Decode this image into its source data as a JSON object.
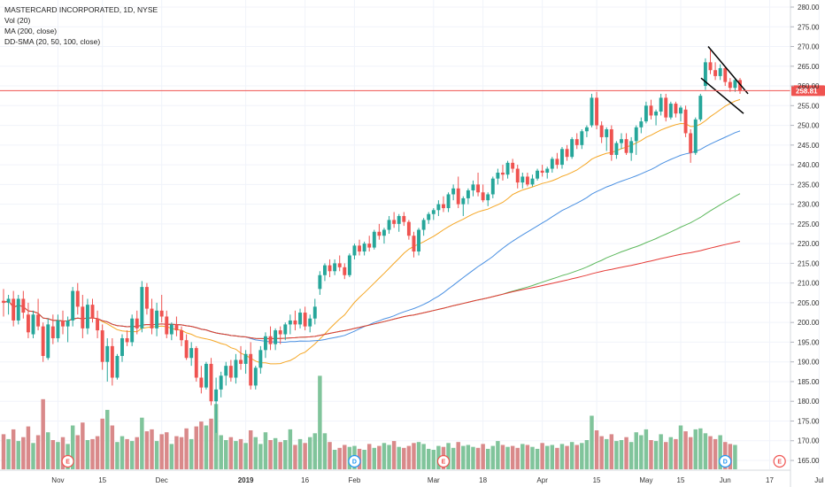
{
  "header": {
    "title": "MASTERCARD INCORPORATED, 1D, NYSE",
    "vol": "Vol (20)",
    "ma": "MA (200, close)",
    "ddsma": "DD-SMA (20, 50, 100, close)"
  },
  "chart_data": {
    "type": "candlestick",
    "title": "MASTERCARD INCORPORATED, 1D, NYSE",
    "price_axis": {
      "min": 162,
      "max": 282,
      "ticks": [
        280,
        275,
        270,
        265,
        260,
        255,
        250,
        245,
        240,
        235,
        230,
        225,
        220,
        215,
        210,
        205,
        200,
        195,
        190,
        185,
        180,
        175,
        170,
        165
      ]
    },
    "x_axis_labels": [
      "Nov",
      "15",
      "Dec",
      "2019",
      "16",
      "Feb",
      "Mar",
      "18",
      "Apr",
      "15",
      "May",
      "15",
      "Jun",
      "17",
      "Jul"
    ],
    "current_price": "258.81",
    "current_price_value": 258.81,
    "colors": {
      "up": "#26a69a",
      "down": "#ef5350",
      "vol_up": "#80c49b",
      "vol_down": "#d9898a",
      "sma20": "#f5a623",
      "sma50": "#4a90e2",
      "sma100": "#5cb85c",
      "ma200": "#e53935",
      "price_line": "#ef5350"
    },
    "events": [
      "E",
      "D",
      "E",
      "D",
      "E"
    ],
    "candles": [
      [
        205.5,
        208.5,
        201.5,
        205.0
      ],
      [
        205.0,
        207.0,
        202.0,
        206.0
      ],
      [
        206.0,
        208.0,
        199.0,
        200.5
      ],
      [
        200.5,
        207.0,
        199.5,
        206.0
      ],
      [
        206.0,
        208.0,
        201.0,
        202.5
      ],
      [
        202.0,
        205.0,
        196.0,
        197.5
      ],
      [
        197.0,
        203.0,
        196.0,
        202.0
      ],
      [
        202.0,
        206.0,
        198.0,
        199.0
      ],
      [
        199.0,
        200.0,
        190.0,
        191.5
      ],
      [
        191.0,
        201.0,
        190.5,
        199.5
      ],
      [
        199.0,
        202.0,
        194.5,
        196.0
      ],
      [
        196.0,
        202.0,
        195.0,
        200.5
      ],
      [
        200.5,
        203.0,
        197.0,
        199.0
      ],
      [
        199.0,
        201.5,
        195.0,
        200.5
      ],
      [
        200.5,
        209.0,
        199.0,
        208.0
      ],
      [
        208.0,
        210.0,
        202.0,
        204.0
      ],
      [
        204.0,
        207.0,
        196.0,
        198.5
      ],
      [
        198.5,
        206.0,
        197.0,
        204.5
      ],
      [
        204.5,
        206.0,
        200.0,
        201.0
      ],
      [
        201.0,
        203.0,
        196.0,
        198.0
      ],
      [
        198.0,
        199.5,
        188.0,
        190.0
      ],
      [
        190.0,
        196.0,
        185.0,
        194.0
      ],
      [
        194.0,
        196.0,
        184.0,
        186.0
      ],
      [
        186.0,
        192.0,
        185.5,
        191.5
      ],
      [
        191.5,
        197.0,
        190.0,
        196.0
      ],
      [
        196.0,
        198.0,
        194.0,
        195.0
      ],
      [
        195.0,
        202.0,
        194.0,
        201.0
      ],
      [
        201.0,
        203.0,
        197.0,
        198.5
      ],
      [
        198.5,
        210.5,
        197.5,
        209.0
      ],
      [
        209.0,
        210.0,
        202.0,
        203.5
      ],
      [
        203.5,
        206.0,
        197.0,
        198.5
      ],
      [
        198.5,
        205.0,
        196.5,
        203.0
      ],
      [
        203.0,
        207.0,
        200.0,
        201.5
      ],
      [
        201.5,
        203.0,
        196.0,
        197.0
      ],
      [
        197.0,
        200.0,
        195.5,
        199.5
      ],
      [
        199.5,
        201.5,
        196.5,
        198.0
      ],
      [
        198.0,
        199.0,
        194.0,
        195.5
      ],
      [
        195.5,
        197.0,
        190.5,
        191.0
      ],
      [
        191.0,
        195.0,
        189.0,
        193.5
      ],
      [
        193.5,
        194.0,
        185.0,
        186.0
      ],
      [
        186.0,
        189.0,
        182.0,
        183.5
      ],
      [
        183.5,
        190.0,
        183.0,
        189.5
      ],
      [
        189.5,
        191.0,
        179.0,
        180.0
      ],
      [
        180.0,
        186.0,
        172.0,
        183.0
      ],
      [
        183.0,
        187.5,
        181.0,
        186.5
      ],
      [
        186.5,
        190.0,
        184.0,
        189.0
      ],
      [
        189.0,
        190.5,
        185.0,
        186.0
      ],
      [
        186.0,
        192.0,
        184.5,
        190.5
      ],
      [
        190.5,
        194.0,
        188.0,
        189.5
      ],
      [
        189.5,
        193.0,
        187.0,
        192.0
      ],
      [
        192.0,
        195.0,
        183.0,
        184.0
      ],
      [
        184.0,
        189.0,
        183.0,
        188.5
      ],
      [
        188.5,
        194.0,
        187.0,
        193.0
      ],
      [
        193.0,
        197.5,
        191.0,
        196.5
      ],
      [
        196.5,
        199.0,
        193.0,
        194.5
      ],
      [
        194.5,
        198.5,
        193.0,
        198.0
      ],
      [
        198.0,
        199.0,
        194.5,
        197.0
      ],
      [
        197.0,
        200.0,
        195.5,
        199.5
      ],
      [
        199.5,
        202.0,
        197.0,
        200.5
      ],
      [
        200.5,
        203.0,
        198.0,
        199.5
      ],
      [
        199.5,
        203.5,
        198.5,
        202.5
      ],
      [
        202.5,
        204.0,
        198.0,
        199.0
      ],
      [
        199.0,
        202.0,
        197.5,
        201.0
      ],
      [
        201.0,
        206.0,
        199.5,
        204.0
      ],
      [
        208.5,
        213.0,
        207.0,
        212.0
      ],
      [
        212.0,
        215.0,
        210.5,
        214.5
      ],
      [
        214.5,
        216.0,
        211.5,
        213.0
      ],
      [
        213.0,
        216.0,
        212.0,
        215.0
      ],
      [
        215.0,
        217.0,
        213.0,
        214.0
      ],
      [
        214.0,
        215.0,
        211.0,
        212.0
      ],
      [
        212.0,
        217.5,
        211.5,
        217.0
      ],
      [
        217.0,
        220.0,
        216.0,
        219.5
      ],
      [
        219.5,
        221.0,
        217.0,
        218.0
      ],
      [
        218.0,
        220.5,
        217.0,
        220.0
      ],
      [
        220.0,
        222.0,
        218.0,
        219.0
      ],
      [
        219.0,
        223.5,
        218.5,
        223.0
      ],
      [
        223.0,
        225.0,
        221.0,
        222.0
      ],
      [
        222.0,
        224.0,
        220.0,
        223.5
      ],
      [
        223.5,
        227.0,
        222.5,
        226.0
      ],
      [
        226.0,
        228.0,
        224.0,
        225.0
      ],
      [
        225.0,
        227.5,
        223.0,
        227.0
      ],
      [
        227.0,
        228.0,
        224.5,
        225.5
      ],
      [
        225.5,
        226.0,
        221.0,
        222.0
      ],
      [
        222.0,
        223.0,
        216.5,
        218.0
      ],
      [
        218.0,
        224.0,
        217.0,
        223.5
      ],
      [
        223.5,
        226.5,
        222.0,
        226.0
      ],
      [
        226.0,
        228.0,
        225.0,
        227.5
      ],
      [
        227.5,
        229.0,
        226.0,
        228.5
      ],
      [
        228.5,
        231.0,
        227.0,
        230.0
      ],
      [
        230.0,
        232.0,
        228.0,
        229.0
      ],
      [
        229.0,
        233.0,
        228.0,
        232.5
      ],
      [
        232.5,
        235.0,
        231.0,
        234.0
      ],
      [
        234.0,
        237.0,
        229.0,
        230.0
      ],
      [
        230.0,
        232.0,
        227.0,
        231.5
      ],
      [
        231.5,
        234.0,
        230.0,
        233.5
      ],
      [
        233.5,
        236.0,
        232.0,
        235.0
      ],
      [
        235.0,
        238.0,
        232.0,
        233.0
      ],
      [
        233.0,
        235.0,
        230.5,
        231.0
      ],
      [
        231.0,
        233.0,
        229.5,
        232.5
      ],
      [
        232.5,
        237.0,
        231.5,
        236.5
      ],
      [
        236.5,
        239.0,
        235.0,
        238.0
      ],
      [
        238.0,
        240.0,
        236.0,
        237.5
      ],
      [
        237.5,
        241.0,
        236.5,
        240.5
      ],
      [
        240.5,
        241.5,
        238.0,
        239.0
      ],
      [
        239.0,
        240.0,
        234.0,
        235.5
      ],
      [
        235.5,
        238.0,
        234.0,
        237.0
      ],
      [
        237.0,
        238.0,
        234.5,
        235.0
      ],
      [
        235.0,
        237.5,
        234.5,
        236.5
      ],
      [
        236.5,
        239.0,
        236.0,
        238.5
      ],
      [
        238.5,
        240.0,
        237.0,
        238.0
      ],
      [
        238.0,
        239.5,
        236.5,
        239.0
      ],
      [
        239.0,
        242.0,
        238.0,
        241.5
      ],
      [
        241.5,
        243.0,
        239.0,
        240.0
      ],
      [
        240.0,
        244.5,
        239.0,
        244.0
      ],
      [
        244.0,
        245.0,
        241.0,
        242.0
      ],
      [
        242.0,
        247.0,
        241.5,
        246.5
      ],
      [
        246.5,
        248.0,
        244.0,
        245.0
      ],
      [
        245.0,
        249.0,
        244.0,
        248.5
      ],
      [
        248.5,
        250.0,
        247.0,
        249.5
      ],
      [
        250.0,
        258.0,
        249.5,
        257.0
      ],
      [
        257.0,
        258.5,
        249.0,
        250.0
      ],
      [
        250.0,
        251.0,
        245.5,
        247.0
      ],
      [
        247.0,
        249.5,
        243.5,
        249.0
      ],
      [
        249.0,
        250.0,
        241.0,
        242.5
      ],
      [
        242.5,
        246.0,
        241.5,
        245.5
      ],
      [
        245.5,
        248.0,
        244.0,
        246.5
      ],
      [
        246.5,
        248.0,
        242.5,
        243.0
      ],
      [
        243.0,
        247.0,
        241.0,
        246.0
      ],
      [
        246.0,
        250.0,
        242.5,
        249.5
      ],
      [
        249.5,
        252.0,
        248.0,
        251.0
      ],
      [
        251.0,
        256.0,
        250.5,
        255.0
      ],
      [
        255.0,
        256.5,
        251.5,
        252.5
      ],
      [
        252.5,
        254.0,
        250.0,
        253.5
      ],
      [
        253.5,
        258.0,
        252.5,
        257.0
      ],
      [
        257.0,
        258.0,
        251.0,
        252.0
      ],
      [
        252.0,
        256.0,
        251.5,
        255.5
      ],
      [
        255.5,
        256.0,
        252.0,
        253.0
      ],
      [
        253.0,
        255.0,
        251.0,
        254.5
      ],
      [
        254.0,
        255.0,
        247.0,
        248.0
      ],
      [
        248.0,
        249.0,
        240.5,
        243.0
      ],
      [
        243.0,
        252.0,
        242.5,
        251.5
      ],
      [
        251.5,
        258.0,
        251.0,
        257.5
      ],
      [
        260.0,
        267.0,
        259.0,
        266.0
      ],
      [
        266.0,
        269.0,
        263.0,
        264.0
      ],
      [
        264.0,
        266.0,
        261.5,
        262.5
      ],
      [
        262.5,
        265.5,
        261.5,
        264.5
      ],
      [
        264.5,
        265.0,
        260.0,
        261.0
      ],
      [
        261.0,
        262.0,
        258.5,
        259.5
      ],
      [
        259.5,
        262.0,
        258.5,
        261.5
      ],
      [
        261.5,
        262.0,
        258.0,
        258.81
      ]
    ],
    "volume": [
      0.36,
      0.31,
      0.41,
      0.29,
      0.33,
      0.44,
      0.27,
      0.35,
      0.72,
      0.38,
      0.3,
      0.28,
      0.33,
      0.26,
      0.45,
      0.35,
      0.48,
      0.3,
      0.31,
      0.34,
      0.52,
      0.61,
      0.45,
      0.28,
      0.34,
      0.31,
      0.29,
      0.33,
      0.53,
      0.39,
      0.41,
      0.29,
      0.36,
      0.38,
      0.26,
      0.34,
      0.33,
      0.42,
      0.31,
      0.44,
      0.49,
      0.45,
      0.52,
      0.67,
      0.35,
      0.3,
      0.33,
      0.29,
      0.31,
      0.27,
      0.4,
      0.33,
      0.26,
      0.38,
      0.3,
      0.32,
      0.28,
      0.3,
      0.41,
      0.25,
      0.31,
      0.27,
      0.33,
      0.37,
      0.96,
      0.37,
      0.28,
      0.2,
      0.22,
      0.25,
      0.23,
      0.24,
      0.21,
      0.2,
      0.26,
      0.22,
      0.24,
      0.27,
      0.25,
      0.29,
      0.23,
      0.22,
      0.24,
      0.27,
      0.28,
      0.26,
      0.21,
      0.2,
      0.24,
      0.23,
      0.27,
      0.22,
      0.28,
      0.24,
      0.25,
      0.23,
      0.22,
      0.26,
      0.21,
      0.24,
      0.29,
      0.25,
      0.23,
      0.24,
      0.22,
      0.26,
      0.25,
      0.23,
      0.21,
      0.27,
      0.24,
      0.25,
      0.22,
      0.26,
      0.24,
      0.28,
      0.25,
      0.27,
      0.3,
      0.55,
      0.4,
      0.34,
      0.31,
      0.36,
      0.29,
      0.3,
      0.33,
      0.28,
      0.38,
      0.35,
      0.41,
      0.3,
      0.29,
      0.36,
      0.28,
      0.33,
      0.31,
      0.45,
      0.39,
      0.33,
      0.41,
      0.42,
      0.37,
      0.34,
      0.31,
      0.35,
      0.28,
      0.26,
      0.25
    ]
  }
}
